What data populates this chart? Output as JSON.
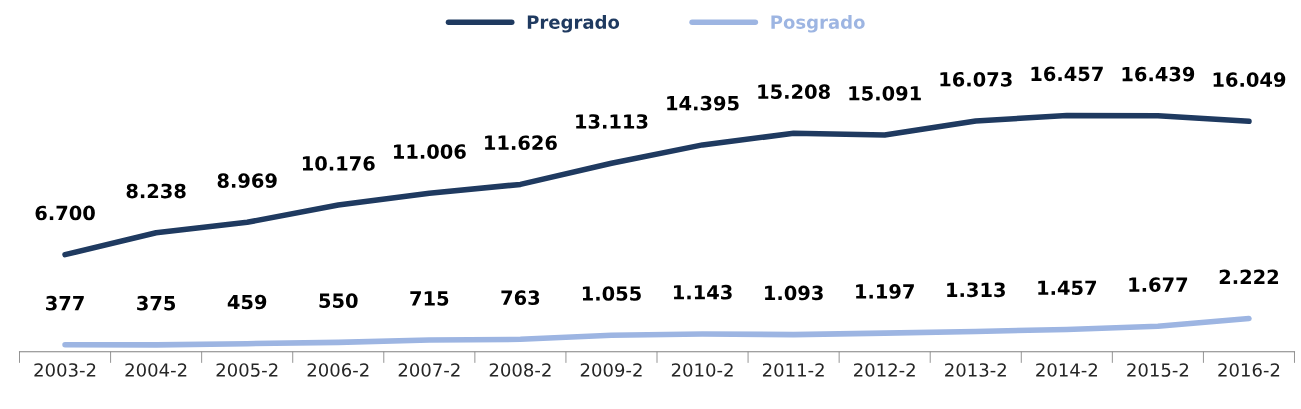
{
  "chart_data": {
    "type": "line",
    "categories": [
      "2003-2",
      "2004-2",
      "2005-2",
      "2006-2",
      "2007-2",
      "2008-2",
      "2009-2",
      "2010-2",
      "2011-2",
      "2012-2",
      "2013-2",
      "2014-2",
      "2015-2",
      "2016-2"
    ],
    "series": [
      {
        "name": "Pregrado",
        "color": "#1f3a60",
        "values": [
          6700,
          8238,
          8969,
          10176,
          11006,
          11626,
          13113,
          14395,
          15208,
          15091,
          16073,
          16457,
          16439,
          16049
        ],
        "value_labels": [
          "6.700",
          "8.238",
          "8.969",
          "10.176",
          "11.006",
          "11.626",
          "13.113",
          "14.395",
          "15.208",
          "15.091",
          "16.073",
          "16.457",
          "16.439",
          "16.049"
        ]
      },
      {
        "name": "Posgrado",
        "color": "#9db5e2",
        "values": [
          377,
          375,
          459,
          550,
          715,
          763,
          1055,
          1143,
          1093,
          1197,
          1313,
          1457,
          1677,
          2222
        ],
        "value_labels": [
          "377",
          "375",
          "459",
          "550",
          "715",
          "763",
          "1.055",
          "1.143",
          "1.093",
          "1.197",
          "1.313",
          "1.457",
          "1.677",
          "2.222"
        ]
      }
    ],
    "legend": "top",
    "grid": false,
    "marker": "none",
    "line_style": "solid"
  }
}
